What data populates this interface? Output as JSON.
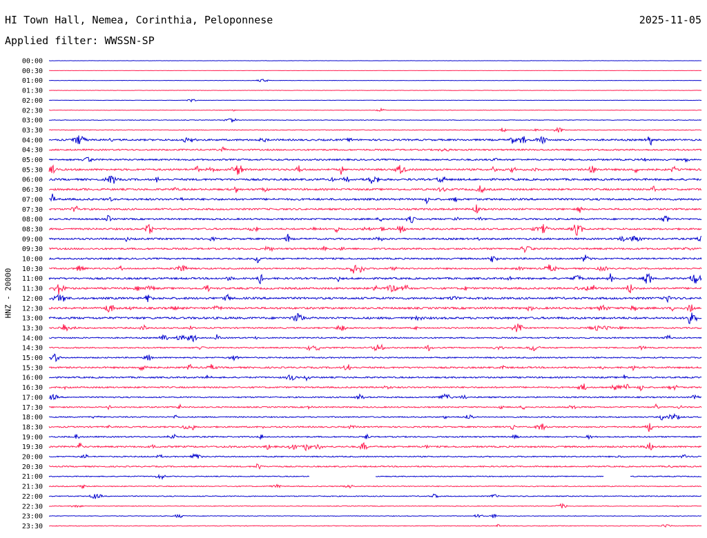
{
  "header": {
    "title": "HI Town Hall, Nemea, Corinthia, Peloponnese",
    "date": "2025-11-05",
    "filter": "Applied filter: WWSSN-SP"
  },
  "chart_data": {
    "type": "line",
    "title": "HI Town Hall, Nemea, Corinthia, Peloponnese",
    "ylabel": "HNZ - 20000",
    "xlabel": "",
    "series_colors": [
      "#0000cc",
      "#ff1a4d"
    ],
    "rows": [
      {
        "label": "00:00",
        "activity": 0.1
      },
      {
        "label": "00:30",
        "activity": 0.1
      },
      {
        "label": "01:00",
        "activity": 0.15
      },
      {
        "label": "01:30",
        "activity": 0.15
      },
      {
        "label": "02:00",
        "activity": 0.15
      },
      {
        "label": "02:30",
        "activity": 0.2
      },
      {
        "label": "03:00",
        "activity": 0.25
      },
      {
        "label": "03:30",
        "activity": 0.3
      },
      {
        "label": "04:00",
        "activity": 0.75
      },
      {
        "label": "04:30",
        "activity": 0.65
      },
      {
        "label": "05:00",
        "activity": 0.7
      },
      {
        "label": "05:30",
        "activity": 0.8
      },
      {
        "label": "06:00",
        "activity": 0.85
      },
      {
        "label": "06:30",
        "activity": 0.8
      },
      {
        "label": "07:00",
        "activity": 0.85
      },
      {
        "label": "07:30",
        "activity": 0.75
      },
      {
        "label": "08:00",
        "activity": 0.7
      },
      {
        "label": "08:30",
        "activity": 0.75
      },
      {
        "label": "09:00",
        "activity": 0.75
      },
      {
        "label": "09:30",
        "activity": 0.75
      },
      {
        "label": "10:00",
        "activity": 0.7
      },
      {
        "label": "10:30",
        "activity": 0.65
      },
      {
        "label": "11:00",
        "activity": 0.8
      },
      {
        "label": "11:30",
        "activity": 0.8
      },
      {
        "label": "12:00",
        "activity": 0.9
      },
      {
        "label": "12:30",
        "activity": 0.85
      },
      {
        "label": "13:00",
        "activity": 0.9
      },
      {
        "label": "13:30",
        "activity": 0.6
      },
      {
        "label": "14:00",
        "activity": 0.55
      },
      {
        "label": "14:30",
        "activity": 0.55
      },
      {
        "label": "15:00",
        "activity": 0.55
      },
      {
        "label": "15:30",
        "activity": 0.7
      },
      {
        "label": "16:00",
        "activity": 0.65
      },
      {
        "label": "16:30",
        "activity": 0.65
      },
      {
        "label": "17:00",
        "activity": 0.55
      },
      {
        "label": "17:30",
        "activity": 0.55
      },
      {
        "label": "18:00",
        "activity": 0.5
      },
      {
        "label": "18:30",
        "activity": 0.6
      },
      {
        "label": "19:00",
        "activity": 0.55
      },
      {
        "label": "19:30",
        "activity": 0.7
      },
      {
        "label": "20:00",
        "activity": 0.5
      },
      {
        "label": "20:30",
        "activity": 0.55
      },
      {
        "label": "21:00",
        "activity": 0.4,
        "gaps": [
          [
            0.4,
            0.5
          ],
          [
            0.85,
            0.89
          ]
        ]
      },
      {
        "label": "21:30",
        "activity": 0.4
      },
      {
        "label": "22:00",
        "activity": 0.4
      },
      {
        "label": "22:30",
        "activity": 0.3
      },
      {
        "label": "23:00",
        "activity": 0.25
      },
      {
        "label": "23:30",
        "activity": 0.3
      }
    ]
  }
}
